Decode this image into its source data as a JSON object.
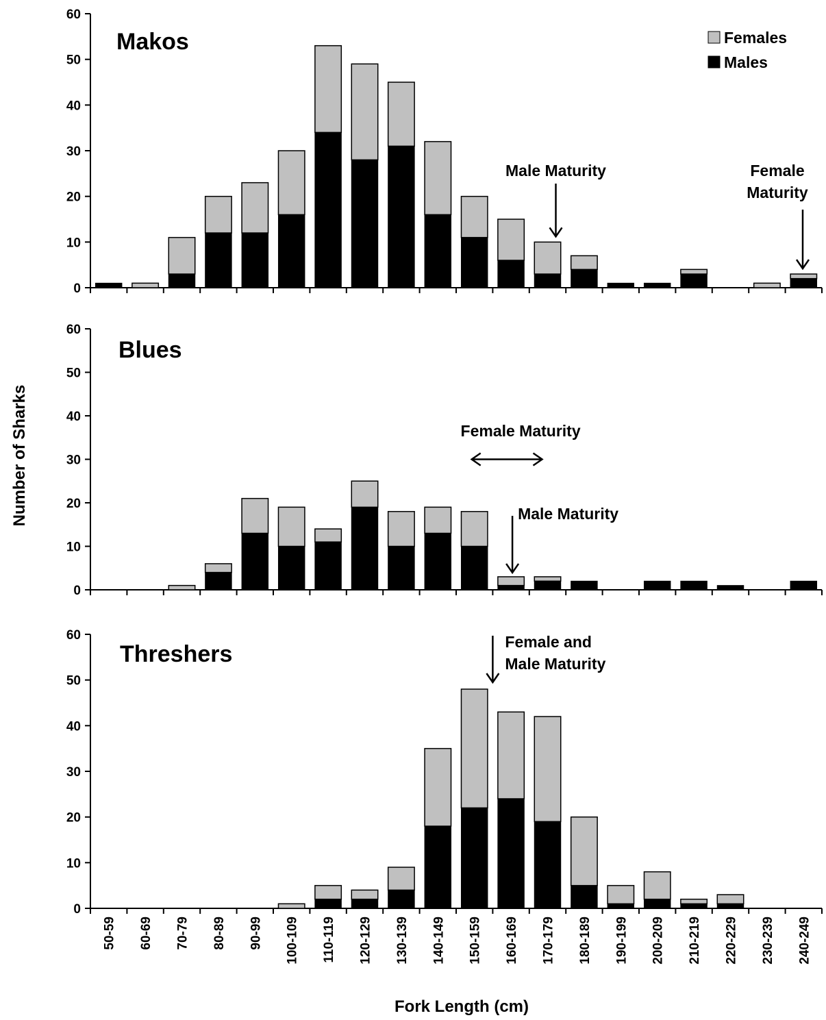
{
  "chart_data": {
    "type": "bar",
    "stacked": true,
    "ylabel": "Number of Sharks",
    "xlabel": "Fork Length (cm)",
    "ylim": [
      0,
      60
    ],
    "yticks": [
      0,
      10,
      20,
      30,
      40,
      50,
      60
    ],
    "categories": [
      "50-59",
      "60-69",
      "70-79",
      "80-89",
      "90-99",
      "100-109",
      "110-119",
      "120-129",
      "130-139",
      "140-149",
      "150-159",
      "160-169",
      "170-179",
      "180-189",
      "190-199",
      "200-209",
      "210-219",
      "220-229",
      "230-239",
      "240-249"
    ],
    "legend": {
      "position": "top-right",
      "entries": [
        "Females",
        "Males"
      ]
    },
    "colors": {
      "Females": "#c0c0c0",
      "Males": "#000000"
    },
    "panels": [
      {
        "title": "Makos",
        "series": [
          {
            "name": "Males",
            "values": [
              1,
              0,
              3,
              12,
              12,
              16,
              34,
              28,
              31,
              16,
              11,
              6,
              3,
              4,
              1,
              1,
              3,
              0,
              0,
              2
            ]
          },
          {
            "name": "Females",
            "values": [
              0,
              1,
              8,
              8,
              11,
              14,
              19,
              21,
              14,
              16,
              9,
              9,
              7,
              3,
              0,
              0,
              1,
              0,
              1,
              1
            ]
          }
        ],
        "annotations": [
          {
            "text": [
              "Male Maturity"
            ],
            "category": "170-179",
            "arrow": "down"
          },
          {
            "text": [
              "Female",
              "Maturity"
            ],
            "category": "240-249",
            "arrow": "down"
          }
        ]
      },
      {
        "title": "Blues",
        "series": [
          {
            "name": "Males",
            "values": [
              0,
              0,
              0,
              4,
              13,
              10,
              11,
              19,
              10,
              13,
              10,
              1,
              2,
              2,
              0,
              2,
              2,
              1,
              0,
              2
            ]
          },
          {
            "name": "Females",
            "values": [
              0,
              0,
              1,
              2,
              8,
              9,
              3,
              6,
              8,
              6,
              8,
              2,
              1,
              0,
              0,
              0,
              0,
              0,
              0,
              0
            ]
          }
        ],
        "annotations": [
          {
            "text": [
              "Female Maturity"
            ],
            "from_category": "150-159",
            "to_category": "170-179",
            "arrow": "double-horizontal",
            "y": 30
          },
          {
            "text": [
              "Male Maturity"
            ],
            "category": "160-169",
            "arrow": "down"
          }
        ]
      },
      {
        "title": "Threshers",
        "series": [
          {
            "name": "Males",
            "values": [
              0,
              0,
              0,
              0,
              0,
              0,
              2,
              2,
              4,
              18,
              22,
              24,
              19,
              5,
              1,
              2,
              1,
              1,
              0,
              0
            ]
          },
          {
            "name": "Females",
            "values": [
              0,
              0,
              0,
              0,
              0,
              1,
              3,
              2,
              5,
              17,
              26,
              19,
              23,
              15,
              4,
              6,
              1,
              2,
              0,
              0
            ]
          }
        ],
        "annotations": [
          {
            "text": [
              "Female and",
              "Male Maturity"
            ],
            "between_categories": [
              "150-159",
              "160-169"
            ],
            "arrow": "down"
          }
        ]
      }
    ]
  }
}
